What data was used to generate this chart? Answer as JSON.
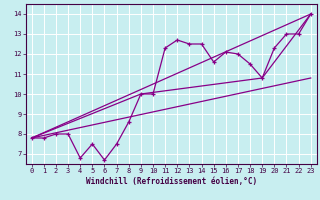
{
  "xlabel": "Windchill (Refroidissement éolien,°C)",
  "xlim": [
    -0.5,
    23.5
  ],
  "ylim": [
    6.5,
    14.5
  ],
  "yticks": [
    7,
    8,
    9,
    10,
    11,
    12,
    13,
    14
  ],
  "xticks": [
    0,
    1,
    2,
    3,
    4,
    5,
    6,
    7,
    8,
    9,
    10,
    11,
    12,
    13,
    14,
    15,
    16,
    17,
    18,
    19,
    20,
    21,
    22,
    23
  ],
  "bg_color": "#c8eef0",
  "line_color": "#880088",
  "grid_color": "#ffffff",
  "main_x": [
    0,
    1,
    2,
    3,
    4,
    5,
    6,
    7,
    8,
    9,
    10,
    11,
    12,
    13,
    14,
    15,
    16,
    17,
    18,
    19,
    20,
    21,
    22,
    23
  ],
  "main_y": [
    7.8,
    7.8,
    8.0,
    8.0,
    6.8,
    7.5,
    6.7,
    7.5,
    8.6,
    10.0,
    10.0,
    12.3,
    12.7,
    12.5,
    12.5,
    11.6,
    12.1,
    12.0,
    11.5,
    10.8,
    12.3,
    13.0,
    13.0,
    14.0
  ],
  "line1_x": [
    0,
    23
  ],
  "line1_y": [
    7.8,
    14.0
  ],
  "line2_x": [
    0,
    9,
    19,
    23
  ],
  "line2_y": [
    7.8,
    10.0,
    10.8,
    14.0
  ],
  "line3_x": [
    0,
    23
  ],
  "line3_y": [
    7.8,
    10.8
  ]
}
